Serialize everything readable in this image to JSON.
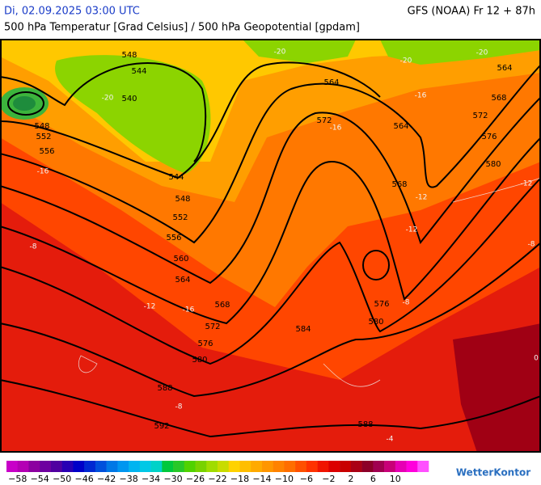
{
  "header": {
    "datetime": "Di, 02.09.2025 03:00 UTC",
    "model": "GFS (NOAA) Fr 12 + 87h",
    "subtitle": "500 hPa Temperatur [Grad Celsius] / 500 hPa Geopotential [gpdam]"
  },
  "geopotential_labels": [
    "548",
    "544",
    "540",
    "548",
    "552",
    "556",
    "544",
    "548",
    "552",
    "556",
    "560",
    "564",
    "568",
    "572",
    "576",
    "580",
    "588",
    "592",
    "564",
    "572",
    "564",
    "568",
    "576",
    "580",
    "584",
    "588",
    "564",
    "568",
    "572",
    "576",
    "580"
  ],
  "temperature_labels": [
    "-20",
    "-20",
    "-20",
    "-16",
    "-16",
    "-12",
    "-12",
    "-12",
    "-8",
    "-8",
    "-8",
    "-8",
    "-4",
    "0",
    "-16",
    "-12",
    "-16",
    "-20"
  ],
  "colorbar": {
    "labels": [
      "−58",
      "−54",
      "−50",
      "−46",
      "−42",
      "−38",
      "−34",
      "−30",
      "−26",
      "−22",
      "−18",
      "−14",
      "−10",
      "−6",
      "−2",
      "2",
      "6",
      "10"
    ],
    "colors": [
      "#c800c8",
      "#b400b4",
      "#8c00a0",
      "#6e00a0",
      "#5000a0",
      "#2800b4",
      "#0000c8",
      "#0028d2",
      "#0050dc",
      "#0078e6",
      "#0096f0",
      "#00b4f0",
      "#00c8e6",
      "#00d2c8",
      "#00c83c",
      "#28c828",
      "#50d200",
      "#78d200",
      "#a0dc00",
      "#c8dc00",
      "#ffd200",
      "#ffbe00",
      "#ffaa00",
      "#ff9600",
      "#ff8200",
      "#ff6e00",
      "#ff5000",
      "#ff3200",
      "#f01400",
      "#dc0000",
      "#c80000",
      "#aa0014",
      "#8c0028",
      "#a00050",
      "#c80078",
      "#e600b4",
      "#ff00dc",
      "#ff50ff"
    ]
  },
  "logo": "WetterKontor"
}
